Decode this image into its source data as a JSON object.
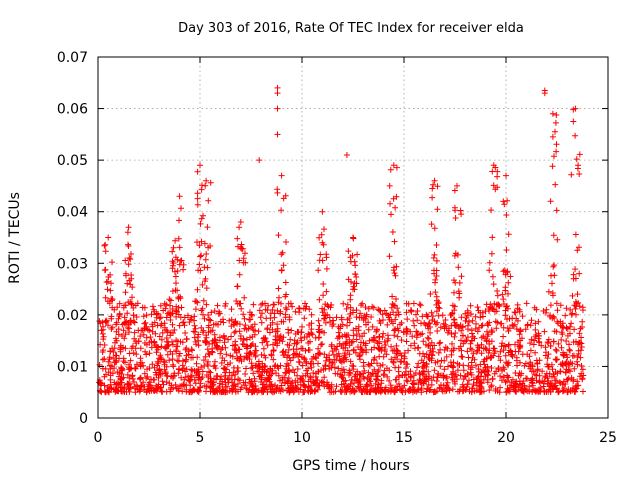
{
  "chart_data": {
    "type": "scatter",
    "title": "Day 303 of 2016, Rate Of TEC Index for receiver elda",
    "xlabel": "GPS time / hours",
    "ylabel": "ROTI / TECUs",
    "xlim": [
      0,
      25
    ],
    "ylim": [
      0,
      0.07
    ],
    "xticks": [
      0,
      5,
      10,
      15,
      20,
      25
    ],
    "xtick_labels": [
      "0",
      "5",
      "10",
      "15",
      "20",
      "25"
    ],
    "yticks": [
      0,
      0.01,
      0.02,
      0.03,
      0.04,
      0.05,
      0.06,
      0.07
    ],
    "ytick_labels": [
      "0",
      "0.01",
      "0.02",
      "0.03",
      "0.04",
      "0.05",
      "0.06",
      "0.07"
    ],
    "grid": true,
    "marker": "+",
    "color": "#ff0000",
    "data_range": {
      "x_min": 0.0,
      "x_max": 23.8
    },
    "baseline_band": {
      "typical_min": 0.005,
      "typical_max": 0.02
    },
    "dense_peaks": [
      {
        "x": 0.5,
        "y": 0.035
      },
      {
        "x": 1.5,
        "y": 0.037
      },
      {
        "x": 3.7,
        "y": 0.033
      },
      {
        "x": 4.0,
        "y": 0.043
      },
      {
        "x": 5.0,
        "y": 0.049
      },
      {
        "x": 5.3,
        "y": 0.046
      },
      {
        "x": 7.0,
        "y": 0.038
      },
      {
        "x": 9.0,
        "y": 0.047
      },
      {
        "x": 11.0,
        "y": 0.04
      },
      {
        "x": 12.5,
        "y": 0.035
      },
      {
        "x": 14.5,
        "y": 0.049
      },
      {
        "x": 16.5,
        "y": 0.046
      },
      {
        "x": 17.6,
        "y": 0.045
      },
      {
        "x": 19.4,
        "y": 0.049
      },
      {
        "x": 20.0,
        "y": 0.047
      },
      {
        "x": 22.3,
        "y": 0.059
      },
      {
        "x": 23.4,
        "y": 0.06
      }
    ],
    "outliers": [
      {
        "x": 7.9,
        "y": 0.05
      },
      {
        "x": 8.8,
        "y": 0.064
      },
      {
        "x": 8.8,
        "y": 0.063
      },
      {
        "x": 8.8,
        "y": 0.06
      },
      {
        "x": 8.8,
        "y": 0.055
      },
      {
        "x": 12.2,
        "y": 0.051
      },
      {
        "x": 21.9,
        "y": 0.0635
      },
      {
        "x": 21.9,
        "y": 0.063
      },
      {
        "x": 23.3,
        "y": 0.0598
      },
      {
        "x": 23.3,
        "y": 0.0575
      },
      {
        "x": 22.4,
        "y": 0.0555
      },
      {
        "x": 22.3,
        "y": 0.0545
      }
    ]
  }
}
